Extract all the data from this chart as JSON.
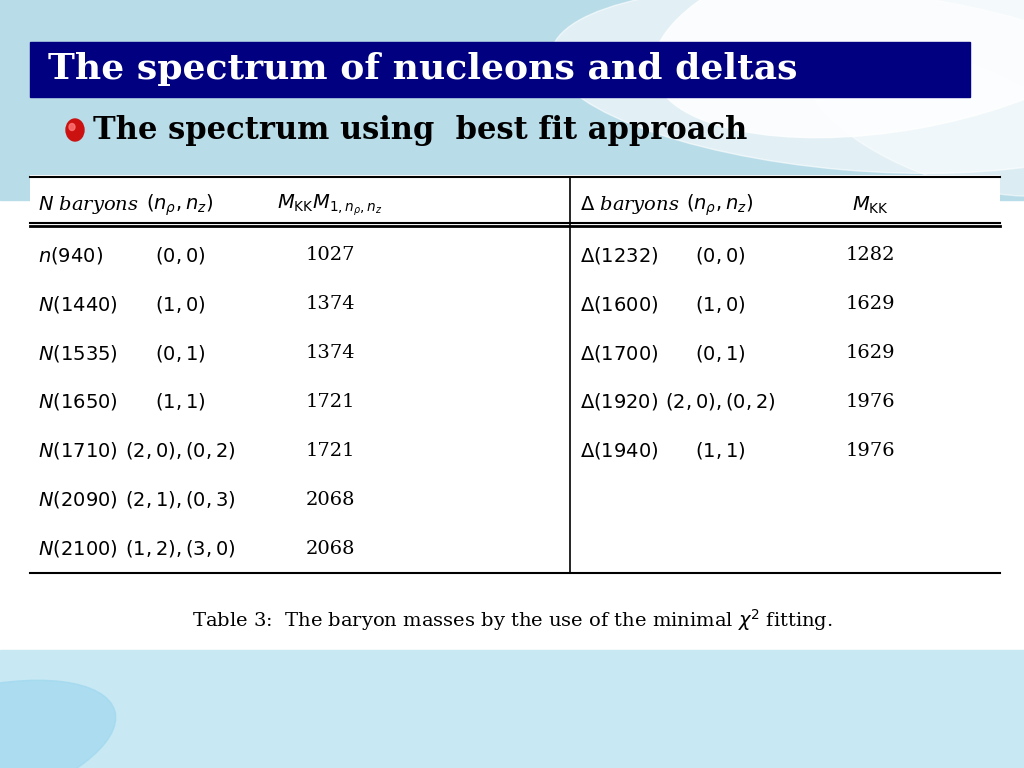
{
  "title": "The spectrum of nucleons and deltas",
  "subtitle": "The spectrum using  best fit approach",
  "bg_top_color": "#a8d8e8",
  "bg_bottom_color": "#d0eaf5",
  "title_bg": "#000080",
  "title_text_color": "#ffffff",
  "table_caption": "Table 3:  The baryon masses by the use of the minimal $\\chi^2$ fitting.",
  "n_rows": [
    [
      "$n(940)$",
      "$(0, 0)$",
      "1027",
      "$\\Delta(1232)$",
      "$(0, 0)$",
      "1282"
    ],
    [
      "$N(1440)$",
      "$(1, 0)$",
      "1374",
      "$\\Delta(1600)$",
      "$(1, 0)$",
      "1629"
    ],
    [
      "$N(1535)$",
      "$(0, 1)$",
      "1374",
      "$\\Delta(1700)$",
      "$(0, 1)$",
      "1629"
    ],
    [
      "$N(1650)$",
      "$(1, 1)$",
      "1721",
      "$\\Delta(1920)$",
      "$(2, 0), (0, 2)$",
      "1976"
    ],
    [
      "$N(1710)$",
      "$(2, 0), (0, 2)$",
      "1721",
      "$\\Delta(1940)$",
      "$(1, 1)$",
      "1976"
    ],
    [
      "$N(2090)$",
      "$(2, 1), (0, 3)$",
      "2068",
      "",
      "",
      ""
    ],
    [
      "$N(2100)$",
      "$(1, 2), (3, 0)$",
      "2068",
      "",
      "",
      ""
    ]
  ]
}
